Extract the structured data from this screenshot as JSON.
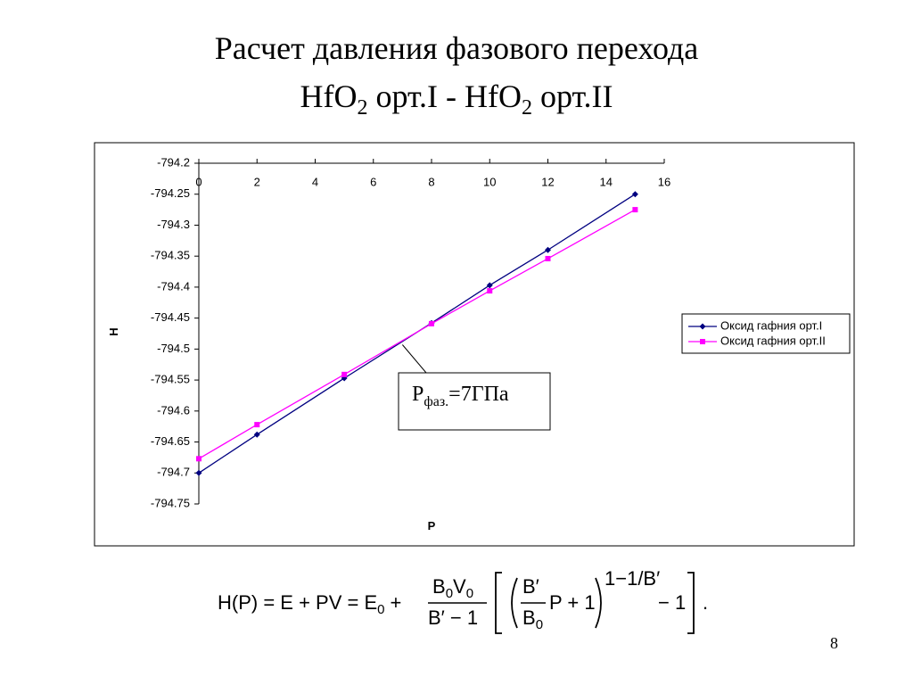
{
  "slide": {
    "title_line1": "Расчет давления фазового перехода",
    "title_line2": [
      "HfO",
      "2",
      " орт.I - HfO",
      "2",
      " орт.II"
    ],
    "page_number": "8",
    "formula": {
      "lhs": "H(P) = E + PV = E",
      "lhs_sub": "0",
      "plus": "+",
      "num_b": "B",
      "num_sub1": "0",
      "num_v": "V",
      "num_sub2": "0",
      "den": "B′ − 1",
      "inner_num": "B′",
      "inner_den": "B",
      "inner_den_sub": "0",
      "after": "P + 1",
      "exponent": "1−1/B′",
      "minus_one": "− 1",
      "period": "."
    }
  },
  "chart_data": {
    "type": "line",
    "x_label": "P",
    "y_label": "H",
    "x": [
      0,
      2,
      5,
      8,
      10,
      12,
      15
    ],
    "series": [
      {
        "name": "Оксид гафния орт.I",
        "color": "#000080",
        "marker": "diamond",
        "values": [
          -794.7,
          -794.638,
          -794.547,
          -794.458,
          -794.397,
          -794.34,
          -794.25
        ]
      },
      {
        "name": "Оксид гафния орт.II",
        "color": "#ff00ff",
        "marker": "square",
        "values": [
          -794.677,
          -794.622,
          -794.541,
          -794.459,
          -794.406,
          -794.354,
          -794.275
        ]
      }
    ],
    "xlim": [
      0,
      16
    ],
    "xticks": [
      0,
      2,
      4,
      6,
      8,
      10,
      12,
      14,
      16
    ],
    "ylim": [
      -794.75,
      -794.2
    ],
    "yticks": [
      -794.2,
      -794.25,
      -794.3,
      -794.35,
      -794.4,
      -794.45,
      -794.5,
      -794.55,
      -794.6,
      -794.65,
      -794.7,
      -794.75
    ],
    "legend": "right",
    "annotation": {
      "text": [
        "P",
        "фаз.",
        "=7ГПа"
      ],
      "x": 7,
      "y": -794.493
    }
  }
}
